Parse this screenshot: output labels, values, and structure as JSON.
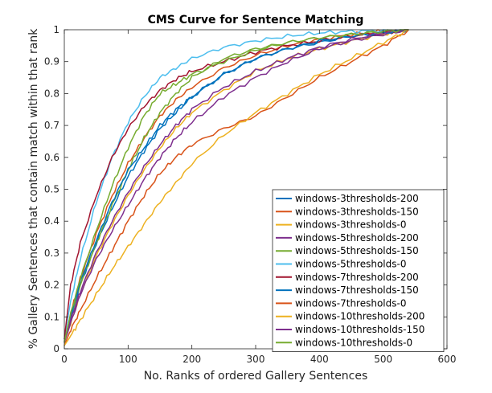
{
  "chart_data": {
    "type": "line",
    "title": "CMS Curve for Sentence Matching",
    "xlabel": "No. Ranks of ordered Gallery Sentences",
    "ylabel": "% Gallery Sentences that contain match within that rank",
    "xlim": [
      0,
      600
    ],
    "ylim": [
      0,
      1
    ],
    "xticks": [
      0,
      100,
      200,
      300,
      400,
      500,
      600
    ],
    "yticks": [
      0,
      0.1,
      0.2,
      0.3,
      0.4,
      0.5,
      0.6,
      0.7,
      0.8,
      0.9,
      1
    ],
    "xtick_labels": [
      "0",
      "100",
      "200",
      "300",
      "400",
      "500",
      "600"
    ],
    "ytick_labels": [
      "0",
      "0.1",
      "0.2",
      "0.3",
      "0.4",
      "0.5",
      "0.6",
      "0.7",
      "0.8",
      "0.9",
      "1"
    ],
    "grid": false,
    "legend_position": "bottom-right",
    "series": [
      {
        "name": "windows-3thresholds-200",
        "color": "#0072BD",
        "x": [
          0,
          10,
          25,
          50,
          75,
          100,
          125,
          150,
          175,
          200,
          250,
          300,
          350,
          400,
          450,
          500,
          540
        ],
        "y": [
          0.02,
          0.09,
          0.2,
          0.33,
          0.44,
          0.54,
          0.62,
          0.69,
          0.74,
          0.79,
          0.86,
          0.91,
          0.94,
          0.96,
          0.98,
          0.99,
          1.0
        ]
      },
      {
        "name": "windows-3thresholds-150",
        "color": "#D95319",
        "x": [
          0,
          10,
          25,
          50,
          75,
          100,
          125,
          150,
          175,
          200,
          250,
          300,
          350,
          400,
          450,
          500,
          540
        ],
        "y": [
          0.02,
          0.11,
          0.22,
          0.36,
          0.48,
          0.58,
          0.66,
          0.73,
          0.78,
          0.82,
          0.88,
          0.92,
          0.95,
          0.97,
          0.985,
          0.995,
          1.0
        ]
      },
      {
        "name": "windows-3thresholds-0",
        "color": "#EDB120",
        "x": [
          0,
          10,
          25,
          50,
          75,
          100,
          125,
          150,
          175,
          200,
          250,
          300,
          350,
          400,
          450,
          500,
          540
        ],
        "y": [
          0.02,
          0.08,
          0.17,
          0.29,
          0.39,
          0.48,
          0.56,
          0.63,
          0.69,
          0.74,
          0.81,
          0.87,
          0.91,
          0.94,
          0.965,
          0.985,
          1.0
        ]
      },
      {
        "name": "windows-5thresholds-200",
        "color": "#7E2F8E",
        "x": [
          0,
          10,
          25,
          50,
          75,
          100,
          125,
          150,
          175,
          200,
          250,
          300,
          350,
          400,
          450,
          500,
          540
        ],
        "y": [
          0.02,
          0.08,
          0.17,
          0.28,
          0.37,
          0.45,
          0.53,
          0.6,
          0.66,
          0.71,
          0.79,
          0.85,
          0.9,
          0.94,
          0.965,
          0.985,
          1.0
        ]
      },
      {
        "name": "windows-5thresholds-150",
        "color": "#77AC30",
        "x": [
          0,
          10,
          25,
          50,
          75,
          100,
          125,
          150,
          175,
          200,
          250,
          300,
          350,
          400,
          450,
          500,
          540
        ],
        "y": [
          0.02,
          0.1,
          0.2,
          0.33,
          0.45,
          0.56,
          0.66,
          0.74,
          0.8,
          0.85,
          0.91,
          0.94,
          0.96,
          0.975,
          0.985,
          0.995,
          1.0
        ]
      },
      {
        "name": "windows-5thresholds-0",
        "color": "#4DBEEE",
        "x": [
          0,
          10,
          25,
          50,
          75,
          100,
          125,
          150,
          175,
          200,
          250,
          300,
          350,
          400,
          450,
          500,
          540
        ],
        "y": [
          0.03,
          0.15,
          0.28,
          0.46,
          0.6,
          0.71,
          0.79,
          0.85,
          0.88,
          0.91,
          0.945,
          0.965,
          0.98,
          0.99,
          0.995,
          0.998,
          1.0
        ]
      },
      {
        "name": "windows-7thresholds-200",
        "color": "#A2142F",
        "x": [
          0,
          10,
          25,
          50,
          75,
          100,
          125,
          150,
          175,
          200,
          250,
          300,
          350,
          400,
          450,
          500,
          540
        ],
        "y": [
          0.03,
          0.2,
          0.33,
          0.48,
          0.6,
          0.69,
          0.76,
          0.81,
          0.845,
          0.87,
          0.9,
          0.93,
          0.95,
          0.965,
          0.98,
          0.99,
          1.0
        ]
      },
      {
        "name": "windows-7thresholds-150",
        "color": "#0072BD",
        "x": [
          0,
          10,
          25,
          50,
          75,
          100,
          125,
          150,
          175,
          200,
          250,
          300,
          350,
          400,
          450,
          500,
          540
        ],
        "y": [
          0.02,
          0.1,
          0.21,
          0.34,
          0.46,
          0.56,
          0.63,
          0.7,
          0.75,
          0.79,
          0.86,
          0.91,
          0.94,
          0.965,
          0.98,
          0.99,
          1.0
        ]
      },
      {
        "name": "windows-7thresholds-0",
        "color": "#D95319",
        "x": [
          0,
          10,
          25,
          50,
          75,
          100,
          125,
          150,
          175,
          200,
          250,
          300,
          350,
          400,
          450,
          500,
          540
        ],
        "y": [
          0.01,
          0.06,
          0.12,
          0.22,
          0.31,
          0.4,
          0.48,
          0.55,
          0.6,
          0.64,
          0.69,
          0.73,
          0.79,
          0.85,
          0.9,
          0.95,
          1.0
        ]
      },
      {
        "name": "windows-10thresholds-200",
        "color": "#EDB120",
        "x": [
          0,
          10,
          25,
          50,
          75,
          100,
          125,
          150,
          175,
          200,
          250,
          300,
          350,
          400,
          450,
          500,
          540
        ],
        "y": [
          0.01,
          0.04,
          0.09,
          0.17,
          0.25,
          0.32,
          0.39,
          0.46,
          0.52,
          0.58,
          0.67,
          0.74,
          0.8,
          0.86,
          0.91,
          0.96,
          1.0
        ]
      },
      {
        "name": "windows-10thresholds-150",
        "color": "#7E2F8E",
        "x": [
          0,
          10,
          25,
          50,
          75,
          100,
          125,
          150,
          175,
          200,
          250,
          300,
          350,
          400,
          450,
          500,
          540
        ],
        "y": [
          0.02,
          0.09,
          0.18,
          0.3,
          0.4,
          0.49,
          0.57,
          0.64,
          0.7,
          0.75,
          0.82,
          0.87,
          0.91,
          0.945,
          0.97,
          0.99,
          1.0
        ]
      },
      {
        "name": "windows-10thresholds-0",
        "color": "#77AC30",
        "x": [
          0,
          10,
          25,
          50,
          75,
          100,
          125,
          150,
          175,
          200,
          250,
          300,
          350,
          400,
          450,
          500,
          540
        ],
        "y": [
          0.02,
          0.11,
          0.22,
          0.37,
          0.51,
          0.63,
          0.73,
          0.8,
          0.83,
          0.86,
          0.9,
          0.935,
          0.96,
          0.975,
          0.985,
          0.995,
          1.0
        ]
      }
    ]
  }
}
